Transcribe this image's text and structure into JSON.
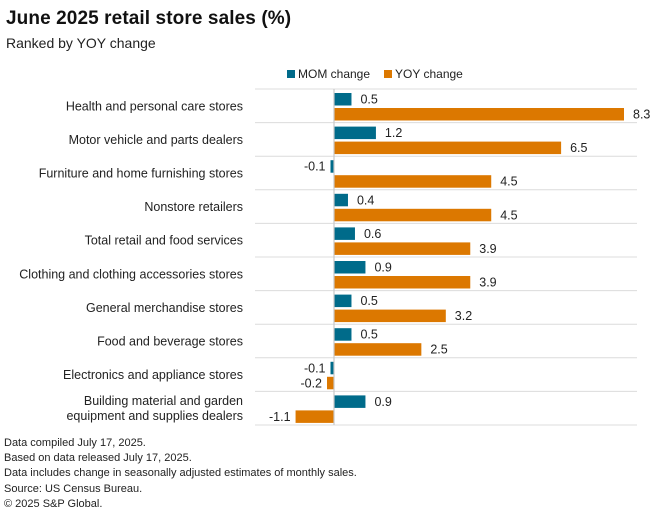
{
  "header": {
    "title": "June 2025 retail store sales (%)",
    "subtitle": "Ranked by YOY change"
  },
  "legend": {
    "items": [
      {
        "label": "MOM change",
        "color": "#006b8a"
      },
      {
        "label": "YOY change",
        "color": "#dc7800"
      }
    ]
  },
  "notes": [
    "Data compiled July 17, 2025.",
    "Based on data released July 17, 2025.",
    "Data includes change in seasonally adjusted estimates of monthly sales.",
    "Source: US Census Bureau.",
    "© 2025 S&P Global."
  ],
  "chart_data": {
    "type": "bar",
    "orientation": "horizontal",
    "title": "June 2025 retail store sales (%)",
    "subtitle": "Ranked by YOY change",
    "xlabel": "",
    "ylabel": "",
    "legend_position": "top",
    "grid": "horizontal separators between categories",
    "xlim": [
      -1.1,
      8.3
    ],
    "categories": [
      [
        "Health and personal care stores"
      ],
      [
        "Motor vehicle and parts dealers"
      ],
      [
        "Furniture and home furnishing stores"
      ],
      [
        "Nonstore retailers"
      ],
      [
        "Total retail and food services"
      ],
      [
        "Clothing and clothing accessories stores"
      ],
      [
        "General merchandise stores"
      ],
      [
        "Food and beverage stores"
      ],
      [
        "Electronics and appliance stores"
      ],
      [
        "Building material and garden",
        "equipment and supplies dealers"
      ]
    ],
    "series": [
      {
        "name": "MOM change",
        "color": "#006b8a",
        "values": [
          0.5,
          1.2,
          -0.1,
          0.4,
          0.6,
          0.9,
          0.5,
          0.5,
          -0.1,
          0.9
        ]
      },
      {
        "name": "YOY change",
        "color": "#dc7800",
        "values": [
          8.3,
          6.5,
          4.5,
          4.5,
          3.9,
          3.9,
          3.2,
          2.5,
          -0.2,
          -1.1
        ]
      }
    ]
  }
}
